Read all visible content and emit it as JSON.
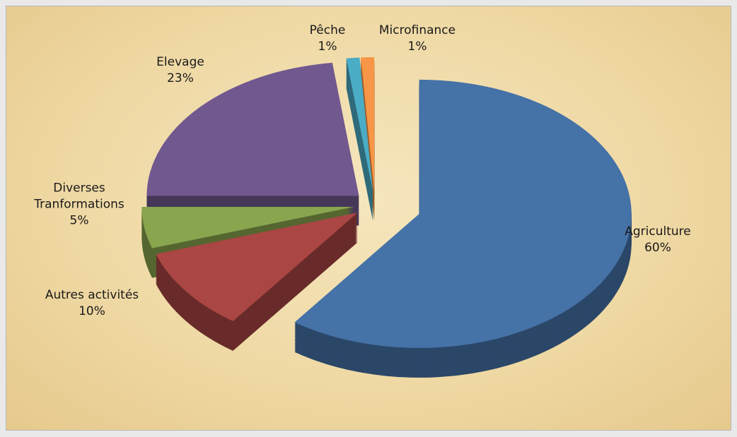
{
  "chart_data": {
    "type": "pie",
    "categories": [
      "Agriculture",
      "Autres activités",
      "Diverses Tranformations",
      "Elevage",
      "Pêche",
      "Microfinance"
    ],
    "values": [
      60,
      10,
      5,
      23,
      1,
      1
    ],
    "value_labels": [
      "60%",
      "10%",
      "5%",
      "23%",
      "1%",
      "1%"
    ],
    "colors": [
      "#4572a7",
      "#aa4643",
      "#89a54e",
      "#71588f",
      "#4bacc6",
      "#f79646"
    ]
  }
}
